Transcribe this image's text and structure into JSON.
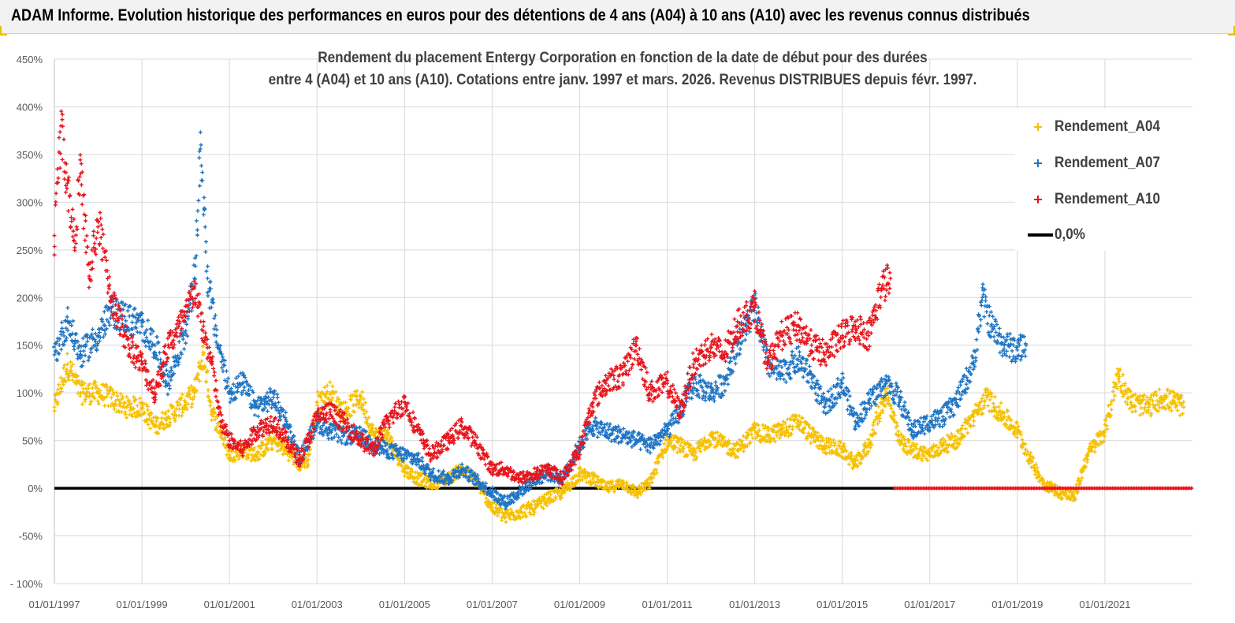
{
  "banner": {
    "text": "ADAM Informe. Evolution historique des performances en euros pour des détentions de 4 ans (A04) à 10 ans (A10) avec les revenus connus distribués"
  },
  "chart_data": {
    "type": "scatter",
    "title_line1": "Rendement du placement Entergy Corporation en fonction de la date de début pour des durées",
    "title_line2": "entre 4 (A04) et 10 ans (A10).  Cotations entre janv. 1997 et mars. 2026. Revenus DISTRIBUES depuis févr. 1997.",
    "xlabel": "",
    "ylabel": "",
    "x_range": [
      1997.0,
      2023.0
    ],
    "ylim": [
      -100,
      450
    ],
    "y_ticks": [
      -100,
      -50,
      0,
      50,
      100,
      150,
      200,
      250,
      300,
      350,
      400,
      450
    ],
    "y_tick_labels": [
      "- 100%",
      "-50%",
      "0%",
      "50%",
      "100%",
      "150%",
      "200%",
      "250%",
      "300%",
      "350%",
      "400%",
      "450%"
    ],
    "x_ticks": [
      1997,
      1999,
      2001,
      2003,
      2005,
      2007,
      2009,
      2011,
      2013,
      2015,
      2017,
      2019,
      2021
    ],
    "x_tick_labels": [
      "01/01/1997",
      "01/01/1999",
      "01/01/2001",
      "01/01/2003",
      "01/01/2005",
      "01/01/2007",
      "01/01/2009",
      "01/01/2011",
      "01/01/2013",
      "01/01/2015",
      "01/01/2017",
      "01/01/2019",
      "01/01/2021"
    ],
    "legend_position": "top-right",
    "grid": true,
    "series": [
      {
        "name": "Rendement_A04",
        "color": "#f5c000",
        "marker": "plus",
        "x": [
          1997.0,
          1997.3,
          1997.6,
          1998.0,
          1998.3,
          1998.6,
          1999.0,
          1999.3,
          1999.6,
          2000.0,
          2000.2,
          2000.4,
          2000.6,
          2000.8,
          2001.0,
          2001.3,
          2001.6,
          2002.0,
          2002.3,
          2002.6,
          2002.8,
          2003.0,
          2003.3,
          2003.6,
          2004.0,
          2004.3,
          2004.6,
          2005.0,
          2005.3,
          2005.6,
          2006.0,
          2006.3,
          2006.6,
          2007.0,
          2007.3,
          2007.6,
          2008.0,
          2008.3,
          2008.6,
          2009.0,
          2009.3,
          2009.6,
          2010.0,
          2010.3,
          2010.6,
          2011.0,
          2011.3,
          2011.6,
          2012.0,
          2012.3,
          2012.6,
          2013.0,
          2013.3,
          2013.6,
          2014.0,
          2014.3,
          2014.6,
          2015.0,
          2015.3,
          2015.6,
          2016.0,
          2016.3,
          2016.6,
          2017.0,
          2017.3,
          2017.6,
          2018.0,
          2018.3,
          2018.6,
          2019.0,
          2019.3,
          2019.6,
          2020.0,
          2020.3,
          2020.6,
          2021.0,
          2021.3,
          2021.6,
          2022.0,
          2022.3,
          2022.6,
          2022.8
        ],
        "values": [
          85,
          130,
          100,
          100,
          95,
          85,
          85,
          65,
          75,
          90,
          100,
          140,
          80,
          60,
          35,
          40,
          35,
          50,
          40,
          25,
          30,
          90,
          100,
          80,
          95,
          55,
          55,
          20,
          10,
          5,
          10,
          20,
          10,
          -20,
          -30,
          -25,
          -20,
          -10,
          -5,
          15,
          10,
          0,
          5,
          -5,
          5,
          50,
          45,
          35,
          55,
          45,
          40,
          60,
          55,
          60,
          70,
          55,
          45,
          40,
          25,
          45,
          100,
          50,
          40,
          35,
          45,
          50,
          75,
          95,
          80,
          60,
          30,
          5,
          -5,
          -10,
          35,
          60,
          120,
          90,
          85,
          95,
          90,
          85
        ]
      },
      {
        "name": "Rendement_A07",
        "color": "#1f74c4",
        "marker": "plus",
        "x": [
          1997.0,
          1997.3,
          1997.6,
          1998.0,
          1998.3,
          1998.6,
          1999.0,
          1999.3,
          1999.6,
          2000.0,
          2000.2,
          2000.35,
          2000.5,
          2000.7,
          2001.0,
          2001.3,
          2001.6,
          2002.0,
          2002.3,
          2002.6,
          2002.8,
          2003.0,
          2003.3,
          2003.6,
          2004.0,
          2004.3,
          2004.6,
          2005.0,
          2005.3,
          2005.6,
          2006.0,
          2006.3,
          2006.6,
          2007.0,
          2007.3,
          2007.6,
          2008.0,
          2008.3,
          2008.6,
          2009.0,
          2009.3,
          2009.6,
          2010.0,
          2010.3,
          2010.6,
          2011.0,
          2011.3,
          2011.6,
          2012.0,
          2012.3,
          2012.6,
          2013.0,
          2013.3,
          2013.6,
          2014.0,
          2014.3,
          2014.6,
          2015.0,
          2015.3,
          2015.6,
          2016.0,
          2016.3,
          2016.6,
          2017.0,
          2017.3,
          2017.6,
          2018.0,
          2018.2,
          2018.4,
          2018.7,
          2019.0,
          2019.2
        ],
        "values": [
          140,
          175,
          140,
          160,
          185,
          180,
          170,
          150,
          110,
          165,
          220,
          360,
          220,
          160,
          100,
          110,
          85,
          95,
          70,
          30,
          50,
          70,
          60,
          55,
          55,
          45,
          40,
          35,
          30,
          15,
          10,
          20,
          10,
          -5,
          -15,
          -5,
          10,
          15,
          10,
          45,
          65,
          60,
          55,
          50,
          45,
          60,
          80,
          110,
          100,
          110,
          150,
          190,
          130,
          120,
          135,
          115,
          85,
          110,
          70,
          90,
          110,
          95,
          60,
          70,
          75,
          90,
          130,
          200,
          170,
          150,
          145,
          150
        ]
      },
      {
        "name": "Rendement_A10",
        "color": "#e8141c",
        "marker": "plus",
        "x": [
          1997.0,
          1997.15,
          1997.3,
          1997.45,
          1997.6,
          1997.8,
          1998.0,
          1998.3,
          1998.6,
          1999.0,
          1999.3,
          1999.6,
          2000.0,
          2000.2,
          2000.4,
          2000.6,
          2000.8,
          2001.0,
          2001.3,
          2001.6,
          2002.0,
          2002.3,
          2002.6,
          2002.8,
          2003.0,
          2003.3,
          2003.6,
          2004.0,
          2004.3,
          2004.6,
          2005.0,
          2005.3,
          2005.6,
          2006.0,
          2006.3,
          2006.6,
          2007.0,
          2007.3,
          2007.6,
          2008.0,
          2008.3,
          2008.6,
          2009.0,
          2009.3,
          2009.6,
          2010.0,
          2010.3,
          2010.6,
          2011.0,
          2011.3,
          2011.6,
          2012.0,
          2012.3,
          2012.6,
          2013.0,
          2013.3,
          2013.6,
          2014.0,
          2014.3,
          2014.6,
          2015.0,
          2015.3,
          2015.6,
          2015.9,
          2016.1
        ],
        "values": [
          265,
          380,
          320,
          260,
          330,
          220,
          280,
          200,
          160,
          130,
          100,
          150,
          180,
          210,
          165,
          130,
          70,
          50,
          40,
          60,
          70,
          50,
          30,
          50,
          75,
          80,
          70,
          50,
          40,
          70,
          90,
          60,
          35,
          50,
          65,
          50,
          20,
          20,
          10,
          15,
          20,
          10,
          40,
          90,
          110,
          120,
          150,
          100,
          110,
          80,
          130,
          150,
          140,
          170,
          190,
          130,
          160,
          170,
          150,
          140,
          160,
          170,
          160,
          210,
          220
        ]
      },
      {
        "name": "0,0%",
        "color": "#000000",
        "marker": "line",
        "x": [
          1997.0,
          2016.2
        ],
        "values": [
          0,
          0
        ]
      }
    ],
    "zero_band": {
      "color": "#e8141c",
      "x_range": [
        2016.2,
        2023.0
      ],
      "value": 0
    }
  }
}
